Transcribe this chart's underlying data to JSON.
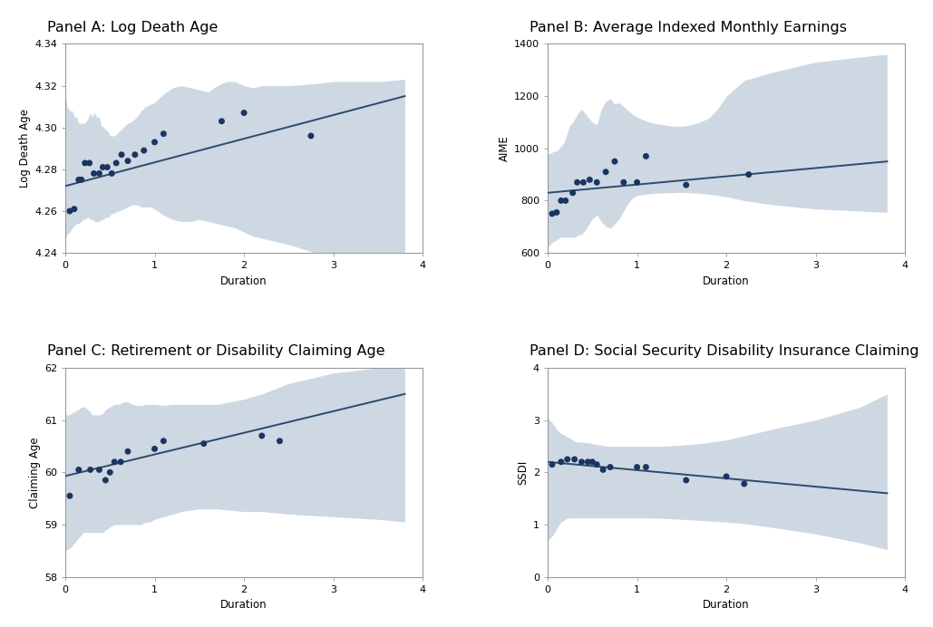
{
  "panels": [
    {
      "title": "Panel A: Log Death Age",
      "ylabel": "Log Death Age",
      "xlabel": "Duration",
      "xlim": [
        0,
        4
      ],
      "ylim": [
        4.24,
        4.34
      ],
      "yticks": [
        4.24,
        4.26,
        4.28,
        4.3,
        4.32,
        4.34
      ],
      "ytick_labels": [
        "4.24",
        "4.26",
        "4.28",
        "4.30",
        "4.32",
        "4.34"
      ],
      "scatter_x": [
        0.05,
        0.1,
        0.15,
        0.18,
        0.22,
        0.27,
        0.32,
        0.38,
        0.42,
        0.47,
        0.52,
        0.57,
        0.63,
        0.7,
        0.78,
        0.88,
        1.0,
        1.1,
        1.75,
        2.0,
        2.75
      ],
      "scatter_y": [
        4.26,
        4.261,
        4.275,
        4.275,
        4.283,
        4.283,
        4.278,
        4.278,
        4.281,
        4.281,
        4.278,
        4.283,
        4.287,
        4.284,
        4.287,
        4.289,
        4.293,
        4.297,
        4.303,
        4.307,
        4.296
      ],
      "trend_x": [
        0,
        3.8
      ],
      "trend_y": [
        4.272,
        4.315
      ],
      "ci_x": [
        0.0,
        0.02,
        0.05,
        0.08,
        0.1,
        0.13,
        0.15,
        0.18,
        0.2,
        0.22,
        0.25,
        0.28,
        0.3,
        0.33,
        0.35,
        0.38,
        0.4,
        0.43,
        0.45,
        0.48,
        0.5,
        0.53,
        0.55,
        0.58,
        0.6,
        0.65,
        0.7,
        0.75,
        0.8,
        0.85,
        0.9,
        0.95,
        1.0,
        1.1,
        1.2,
        1.3,
        1.4,
        1.5,
        1.6,
        1.7,
        1.8,
        1.9,
        2.0,
        2.1,
        2.2,
        2.5,
        2.8,
        3.0,
        3.2,
        3.5,
        3.8
      ],
      "ci_upper": [
        4.315,
        4.31,
        4.308,
        4.308,
        4.305,
        4.305,
        4.302,
        4.302,
        4.302,
        4.302,
        4.304,
        4.307,
        4.305,
        4.307,
        4.305,
        4.305,
        4.301,
        4.3,
        4.299,
        4.298,
        4.296,
        4.296,
        4.296,
        4.297,
        4.298,
        4.3,
        4.302,
        4.303,
        4.305,
        4.308,
        4.31,
        4.311,
        4.312,
        4.316,
        4.319,
        4.32,
        4.319,
        4.318,
        4.317,
        4.32,
        4.322,
        4.322,
        4.32,
        4.319,
        4.32,
        4.32,
        4.321,
        4.322,
        4.322,
        4.322,
        4.323
      ],
      "ci_lower": [
        4.247,
        4.249,
        4.25,
        4.252,
        4.253,
        4.254,
        4.254,
        4.255,
        4.256,
        4.256,
        4.257,
        4.256,
        4.256,
        4.255,
        4.255,
        4.255,
        4.256,
        4.256,
        4.257,
        4.257,
        4.258,
        4.259,
        4.259,
        4.26,
        4.26,
        4.261,
        4.262,
        4.263,
        4.263,
        4.262,
        4.262,
        4.262,
        4.261,
        4.258,
        4.256,
        4.255,
        4.255,
        4.256,
        4.255,
        4.254,
        4.253,
        4.252,
        4.25,
        4.248,
        4.247,
        4.244,
        4.24,
        4.238,
        4.235,
        4.231,
        4.228
      ]
    },
    {
      "title": "Panel B: Average Indexed Monthly Earnings",
      "ylabel": "AIME",
      "xlabel": "Duration",
      "xlim": [
        0,
        4
      ],
      "ylim": [
        600,
        1400
      ],
      "yticks": [
        600,
        800,
        1000,
        1200,
        1400
      ],
      "ytick_labels": [
        "600",
        "800",
        "1000",
        "1200",
        "1400"
      ],
      "scatter_x": [
        0.05,
        0.1,
        0.15,
        0.2,
        0.28,
        0.33,
        0.4,
        0.47,
        0.55,
        0.65,
        0.75,
        0.85,
        1.0,
        1.1,
        1.55,
        2.25
      ],
      "scatter_y": [
        750,
        755,
        800,
        800,
        830,
        870,
        870,
        880,
        870,
        910,
        950,
        870,
        870,
        970,
        860,
        900
      ],
      "trend_x": [
        0,
        3.8
      ],
      "trend_y": [
        830,
        950
      ],
      "ci_x": [
        0.0,
        0.02,
        0.05,
        0.08,
        0.1,
        0.13,
        0.15,
        0.18,
        0.2,
        0.22,
        0.25,
        0.28,
        0.3,
        0.33,
        0.35,
        0.38,
        0.4,
        0.43,
        0.45,
        0.5,
        0.55,
        0.6,
        0.65,
        0.7,
        0.75,
        0.8,
        0.85,
        0.9,
        0.95,
        1.0,
        1.1,
        1.2,
        1.3,
        1.4,
        1.5,
        1.6,
        1.7,
        1.8,
        1.9,
        2.0,
        2.2,
        2.5,
        3.0,
        3.5,
        3.8
      ],
      "ci_upper": [
        980,
        980,
        985,
        990,
        990,
        1000,
        1010,
        1020,
        1040,
        1060,
        1090,
        1100,
        1110,
        1130,
        1140,
        1150,
        1140,
        1130,
        1120,
        1100,
        1090,
        1150,
        1180,
        1190,
        1170,
        1175,
        1160,
        1145,
        1130,
        1120,
        1105,
        1095,
        1090,
        1085,
        1085,
        1090,
        1100,
        1115,
        1150,
        1200,
        1260,
        1290,
        1330,
        1350,
        1360
      ],
      "ci_lower": [
        620,
        630,
        640,
        645,
        650,
        655,
        660,
        660,
        660,
        660,
        660,
        660,
        660,
        665,
        670,
        670,
        680,
        690,
        705,
        730,
        745,
        720,
        700,
        695,
        710,
        730,
        760,
        790,
        810,
        820,
        825,
        828,
        830,
        830,
        832,
        830,
        828,
        825,
        820,
        815,
        800,
        785,
        768,
        760,
        755
      ]
    },
    {
      "title": "Panel C: Retirement or Disability Claiming Age",
      "ylabel": "Claiming Age",
      "xlabel": "Duration",
      "xlim": [
        0,
        4
      ],
      "ylim": [
        58,
        62
      ],
      "yticks": [
        58,
        59,
        60,
        61,
        62
      ],
      "ytick_labels": [
        "58",
        "59",
        "60",
        "61",
        "62"
      ],
      "scatter_x": [
        0.05,
        0.15,
        0.28,
        0.38,
        0.45,
        0.5,
        0.55,
        0.62,
        0.7,
        1.0,
        1.1,
        1.55,
        2.2,
        2.4
      ],
      "scatter_y": [
        59.55,
        60.05,
        60.05,
        60.05,
        59.85,
        60.0,
        60.2,
        60.2,
        60.4,
        60.45,
        60.6,
        60.55,
        60.7,
        60.6
      ],
      "trend_x": [
        0,
        3.8
      ],
      "trend_y": [
        59.93,
        61.5
      ],
      "ci_x": [
        0.0,
        0.02,
        0.05,
        0.08,
        0.1,
        0.13,
        0.15,
        0.18,
        0.2,
        0.22,
        0.25,
        0.28,
        0.3,
        0.33,
        0.35,
        0.38,
        0.4,
        0.43,
        0.45,
        0.5,
        0.55,
        0.6,
        0.65,
        0.7,
        0.75,
        0.8,
        0.85,
        0.9,
        0.95,
        1.0,
        1.1,
        1.2,
        1.3,
        1.5,
        1.7,
        2.0,
        2.2,
        2.5,
        3.0,
        3.5,
        3.8
      ],
      "ci_upper": [
        61.1,
        61.1,
        61.1,
        61.15,
        61.15,
        61.2,
        61.2,
        61.25,
        61.25,
        61.25,
        61.2,
        61.15,
        61.1,
        61.1,
        61.1,
        61.1,
        61.1,
        61.15,
        61.2,
        61.25,
        61.3,
        61.3,
        61.35,
        61.35,
        61.3,
        61.28,
        61.28,
        61.3,
        61.3,
        61.3,
        61.28,
        61.3,
        61.3,
        61.3,
        61.3,
        61.4,
        61.5,
        61.7,
        61.9,
        62.0,
        62.05
      ],
      "ci_lower": [
        58.5,
        58.52,
        58.55,
        58.6,
        58.65,
        58.7,
        58.75,
        58.8,
        58.85,
        58.85,
        58.85,
        58.85,
        58.85,
        58.85,
        58.85,
        58.85,
        58.85,
        58.85,
        58.9,
        58.95,
        59.0,
        59.0,
        59.0,
        59.0,
        59.0,
        59.0,
        59.0,
        59.05,
        59.05,
        59.1,
        59.15,
        59.2,
        59.25,
        59.3,
        59.3,
        59.25,
        59.25,
        59.2,
        59.15,
        59.1,
        59.05
      ]
    },
    {
      "title": "Panel D: Social Security Disability Insurance Claiming",
      "ylabel": "SSDI",
      "xlabel": "Duration",
      "xlim": [
        0,
        4
      ],
      "ylim": [
        0,
        4
      ],
      "yticks": [
        0,
        1,
        2,
        3,
        4
      ],
      "ytick_labels": [
        "0",
        "1",
        "2",
        "3",
        "4"
      ],
      "scatter_x": [
        0.05,
        0.15,
        0.22,
        0.3,
        0.38,
        0.45,
        0.5,
        0.55,
        0.62,
        0.7,
        1.0,
        1.1,
        1.55,
        2.0,
        2.2
      ],
      "scatter_y": [
        2.15,
        2.2,
        2.25,
        2.25,
        2.2,
        2.2,
        2.2,
        2.15,
        2.05,
        2.1,
        2.1,
        2.1,
        1.85,
        1.92,
        1.78
      ],
      "trend_x": [
        0,
        3.8
      ],
      "trend_y": [
        2.2,
        1.6
      ],
      "ci_x": [
        0.0,
        0.02,
        0.05,
        0.08,
        0.1,
        0.13,
        0.15,
        0.18,
        0.2,
        0.22,
        0.25,
        0.28,
        0.3,
        0.33,
        0.35,
        0.38,
        0.4,
        0.43,
        0.45,
        0.5,
        0.55,
        0.6,
        0.65,
        0.7,
        0.75,
        0.8,
        0.9,
        1.0,
        1.1,
        1.2,
        1.3,
        1.5,
        1.7,
        2.0,
        2.2,
        2.5,
        3.0,
        3.5,
        3.8
      ],
      "ci_upper": [
        3.05,
        3.0,
        2.95,
        2.88,
        2.82,
        2.77,
        2.74,
        2.72,
        2.7,
        2.68,
        2.65,
        2.62,
        2.6,
        2.58,
        2.58,
        2.58,
        2.57,
        2.57,
        2.57,
        2.55,
        2.53,
        2.52,
        2.5,
        2.5,
        2.5,
        2.5,
        2.5,
        2.5,
        2.5,
        2.5,
        2.5,
        2.52,
        2.55,
        2.62,
        2.7,
        2.82,
        3.0,
        3.25,
        3.5
      ],
      "ci_lower": [
        0.7,
        0.73,
        0.78,
        0.85,
        0.92,
        1.0,
        1.05,
        1.08,
        1.1,
        1.12,
        1.13,
        1.13,
        1.13,
        1.13,
        1.13,
        1.13,
        1.13,
        1.13,
        1.13,
        1.13,
        1.13,
        1.13,
        1.13,
        1.13,
        1.13,
        1.13,
        1.13,
        1.13,
        1.13,
        1.12,
        1.12,
        1.1,
        1.08,
        1.05,
        1.02,
        0.95,
        0.82,
        0.65,
        0.52
      ]
    }
  ],
  "scatter_color": "#1a3560",
  "line_color": "#2c4a6e",
  "ci_color": "#b8c8d8",
  "ci_alpha": 0.7,
  "scatter_size": 25,
  "line_width": 1.4,
  "title_fontsize": 11.5,
  "label_fontsize": 8.5,
  "tick_fontsize": 8,
  "bg_color": "#ffffff",
  "spine_color": "#999999"
}
